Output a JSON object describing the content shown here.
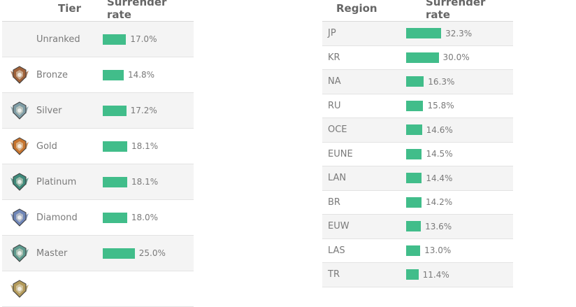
{
  "tier_table": {
    "headers": [
      "Tier",
      "Surrender rate"
    ],
    "rows": [
      {
        "name": "Unranked",
        "value": "17.0%",
        "rate": 17.0,
        "icon": null
      },
      {
        "name": "Bronze",
        "value": "14.8%",
        "rate": 14.8,
        "icon": "bronze-emblem-icon",
        "color": "#a0623a"
      },
      {
        "name": "Silver",
        "value": "17.2%",
        "rate": 17.2,
        "icon": "silver-emblem-icon",
        "color": "#7f9da6"
      },
      {
        "name": "Gold",
        "value": "18.1%",
        "rate": 18.1,
        "icon": "gold-emblem-icon",
        "color": "#c8752f"
      },
      {
        "name": "Platinum",
        "value": "18.1%",
        "rate": 18.1,
        "icon": "platinum-emblem-icon",
        "color": "#3f8a7b"
      },
      {
        "name": "Diamond",
        "value": "18.0%",
        "rate": 18.0,
        "icon": "diamond-emblem-icon",
        "color": "#6f86b8"
      },
      {
        "name": "Master",
        "value": "25.0%",
        "rate": 25.0,
        "icon": "master-emblem-icon",
        "color": "#5e9a8e"
      },
      {
        "name": "",
        "value": "",
        "rate": null,
        "icon": "challenger-emblem-icon",
        "color": "#b39a5a"
      }
    ]
  },
  "region_table": {
    "headers": [
      "Region",
      "Surrender rate"
    ],
    "rows": [
      {
        "name": "JP",
        "value": "32.3%",
        "rate": 32.3
      },
      {
        "name": "KR",
        "value": "30.0%",
        "rate": 30.0
      },
      {
        "name": "NA",
        "value": "16.3%",
        "rate": 16.3
      },
      {
        "name": "RU",
        "value": "15.8%",
        "rate": 15.8
      },
      {
        "name": "OCE",
        "value": "14.6%",
        "rate": 14.6
      },
      {
        "name": "EUNE",
        "value": "14.5%",
        "rate": 14.5
      },
      {
        "name": "LAN",
        "value": "14.4%",
        "rate": 14.4
      },
      {
        "name": "BR",
        "value": "14.2%",
        "rate": 14.2
      },
      {
        "name": "EUW",
        "value": "13.6%",
        "rate": 13.6
      },
      {
        "name": "LAS",
        "value": "13.0%",
        "rate": 13.0
      },
      {
        "name": "TR",
        "value": "11.4%",
        "rate": 11.4
      }
    ]
  },
  "bar_color": "#41bd8a",
  "chart_data": [
    {
      "type": "table",
      "columns": [
        "Tier",
        "Surrender rate"
      ],
      "categories": [
        "Unranked",
        "Bronze",
        "Silver",
        "Gold",
        "Platinum",
        "Diamond",
        "Master"
      ],
      "values": [
        17.0,
        14.8,
        17.2,
        18.1,
        18.1,
        18.0,
        25.0
      ],
      "unit": "%"
    },
    {
      "type": "table",
      "columns": [
        "Region",
        "Surrender rate"
      ],
      "categories": [
        "JP",
        "KR",
        "NA",
        "RU",
        "OCE",
        "EUNE",
        "LAN",
        "BR",
        "EUW",
        "LAS",
        "TR"
      ],
      "values": [
        32.3,
        30.0,
        16.3,
        15.8,
        14.6,
        14.5,
        14.4,
        14.2,
        13.6,
        13.0,
        11.4
      ],
      "unit": "%"
    }
  ]
}
